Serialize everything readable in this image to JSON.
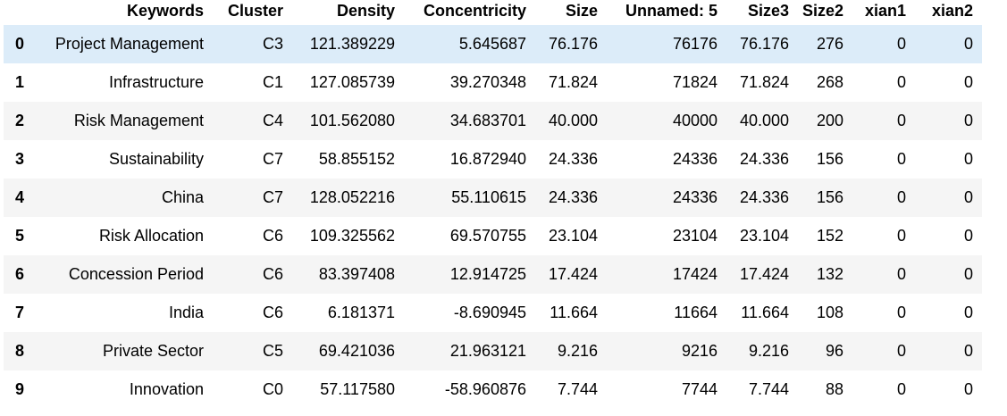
{
  "dataframe": {
    "columns": [
      "",
      "Keywords",
      "Cluster",
      "Density",
      "Concentricity",
      "Size",
      "Unnamed: 5",
      "Size3",
      "Size2",
      "xian1",
      "xian2"
    ],
    "rows": [
      {
        "index": "0",
        "cells": [
          "Project Management",
          "C3",
          "121.389229",
          "5.645687",
          "76.176",
          "76176",
          "76.176",
          "276",
          "0",
          "0"
        ]
      },
      {
        "index": "1",
        "cells": [
          "Infrastructure",
          "C1",
          "127.085739",
          "39.270348",
          "71.824",
          "71824",
          "71.824",
          "268",
          "0",
          "0"
        ]
      },
      {
        "index": "2",
        "cells": [
          "Risk Management",
          "C4",
          "101.562080",
          "34.683701",
          "40.000",
          "40000",
          "40.000",
          "200",
          "0",
          "0"
        ]
      },
      {
        "index": "3",
        "cells": [
          "Sustainability",
          "C7",
          "58.855152",
          "16.872940",
          "24.336",
          "24336",
          "24.336",
          "156",
          "0",
          "0"
        ]
      },
      {
        "index": "4",
        "cells": [
          "China",
          "C7",
          "128.052216",
          "55.110615",
          "24.336",
          "24336",
          "24.336",
          "156",
          "0",
          "0"
        ]
      },
      {
        "index": "5",
        "cells": [
          "Risk Allocation",
          "C6",
          "109.325562",
          "69.570755",
          "23.104",
          "23104",
          "23.104",
          "152",
          "0",
          "0"
        ]
      },
      {
        "index": "6",
        "cells": [
          "Concession Period",
          "C6",
          "83.397408",
          "12.914725",
          "17.424",
          "17424",
          "17.424",
          "132",
          "0",
          "0"
        ]
      },
      {
        "index": "7",
        "cells": [
          "India",
          "C6",
          "6.181371",
          "-8.690945",
          "11.664",
          "11664",
          "11.664",
          "108",
          "0",
          "0"
        ]
      },
      {
        "index": "8",
        "cells": [
          "Private Sector",
          "C5",
          "69.421036",
          "21.963121",
          "9.216",
          "9216",
          "9.216",
          "96",
          "0",
          "0"
        ]
      },
      {
        "index": "9",
        "cells": [
          "Innovation",
          "C0",
          "57.117580",
          "-58.960876",
          "7.744",
          "7744",
          "7.744",
          "88",
          "0",
          "0"
        ]
      }
    ],
    "highlighted_row": 0,
    "colors": {
      "row_highlight": "#dcecf9",
      "row_stripe": "#f5f5f5",
      "background": "#ffffff"
    }
  }
}
